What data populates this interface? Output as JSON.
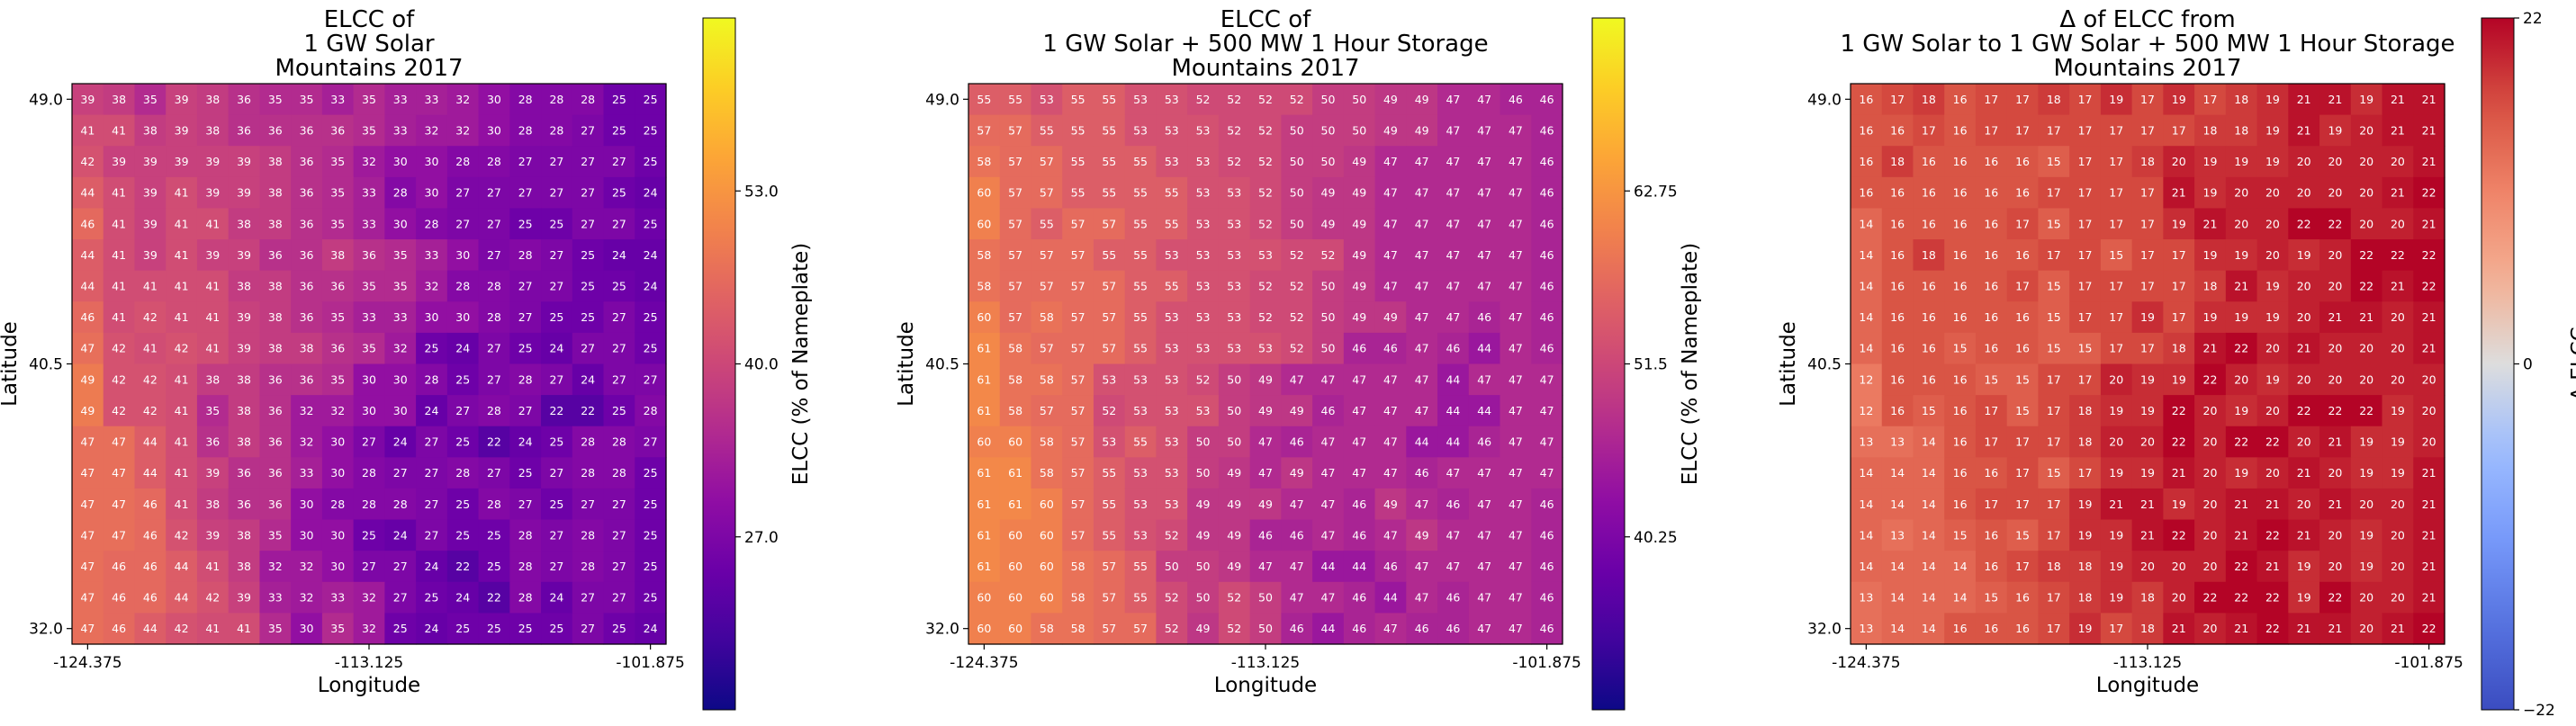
{
  "chart_data": [
    {
      "type": "heatmap",
      "title": [
        "ELCC of",
        "1 GW Solar",
        "Mountains 2017"
      ],
      "xlabel": "Longitude",
      "ylabel": "Latitude",
      "xticks": [
        "-124.375",
        "-113.125",
        "-101.875"
      ],
      "yticks": [
        "49.0",
        "40.5",
        "32.0"
      ],
      "colorbar_label": "ELCC (% of Nameplate)",
      "colorbar_ticks": [
        "27.0",
        "40.0",
        "53.0"
      ],
      "colorbar_tick_values": [
        27.0,
        40.0,
        53.0
      ],
      "colormap": "plasma",
      "vmin": 14,
      "vmax": 66,
      "rows": [
        "39 38 35 39 38 36 35 35 33 35 33 33 32 30 28 28 28 25 25",
        "41 41 38 39 38 36 36 36 36 35 33 32 32 30 28 28 27 25 25",
        "42 39 39 39 39 39 38 36 35 32 30 30 28 28 27 27 27 27 25",
        "44 41 39 41 39 39 38 36 35 33 28 30 27 27 27 27 27 25 24",
        "46 41 39 41 41 38 38 36 35 33 30 28 27 27 25 25 27 27 25",
        "44 41 39 41 39 39 36 36 38 36 35 33 30 27 28 27 25 24 24",
        "44 41 41 41 41 38 38 36 36 35 35 32 28 28 27 27 25 25 24",
        "46 41 42 41 41 39 38 36 35 33 33 30 30 28 27 25 25 27 25",
        "47 42 41 42 41 39 38 38 36 35 32 25 24 27 25 24 27 27 25",
        "49 42 42 41 38 38 36 36 35 30 30 28 25 27 28 27 24 27 27",
        "49 42 42 41 35 38 36 32 32 30 30 24 27 28 27 22 22 25 28",
        "47 47 44 41 36 38 36 32 30 27 24 27 25 22 24 25 28 28 27",
        "47 47 44 41 39 36 36 33 30 28 27 27 28 27 25 27 28 28 25",
        "47 47 46 41 38 36 36 30 28 28 28 27 25 28 27 25 27 27 25",
        "47 47 46 42 39 38 35 30 30 25 24 27 25 25 28 27 28 27 25",
        "47 46 46 44 41 38 32 32 30 27 27 24 22 25 28 27 28 27 25",
        "47 46 46 44 42 39 33 32 33 32 27 25 24 22 28 24 27 27 25",
        "47 46 44 42 41 41 35 30 35 32 25 24 25 25 25 25 27 25 24"
      ]
    },
    {
      "type": "heatmap",
      "title": [
        "ELCC of",
        "1 GW Solar + 500 MW 1 Hour Storage",
        "Mountains 2017"
      ],
      "xlabel": "Longitude",
      "ylabel": "Latitude",
      "xticks": [
        "-124.375",
        "-113.125",
        "-101.875"
      ],
      "yticks": [
        "49.0",
        "40.5",
        "32.0"
      ],
      "colorbar_label": "ELCC (% of Nameplate)",
      "colorbar_ticks": [
        "40.25",
        "51.5",
        "62.75"
      ],
      "colorbar_tick_values": [
        40.25,
        51.5,
        62.75
      ],
      "colormap": "plasma",
      "vmin": 29,
      "vmax": 74,
      "rows": [
        "55 55 53 55 55 53 53 52 52 52 52 50 50 49 49 47 47 46 46",
        "57 57 55 55 55 53 53 53 52 52 50 50 50 49 49 47 47 47 46",
        "58 57 57 55 55 55 53 53 52 52 50 50 49 47 47 47 47 47 46",
        "60 57 57 55 55 55 55 53 53 52 50 49 49 47 47 47 47 47 46",
        "60 57 55 57 57 55 55 53 53 52 50 49 49 47 47 47 47 47 46",
        "58 57 57 57 55 55 53 53 53 53 52 52 49 47 47 47 47 47 46",
        "58 57 57 57 57 55 55 53 53 52 52 50 49 47 47 47 47 47 46",
        "60 57 58 57 57 55 53 53 53 52 52 50 49 49 47 47 46 47 46",
        "61 58 57 57 57 55 53 53 53 53 52 50 46 46 47 46 44 47 46",
        "61 58 58 57 53 53 53 52 50 49 47 47 47 47 47 44 47 47 47",
        "61 58 57 57 52 53 53 53 50 49 49 46 47 47 47 44 44 47 47",
        "60 60 58 57 53 55 53 50 50 47 46 47 47 47 44 44 46 47 47",
        "61 61 58 57 55 53 53 50 49 47 49 47 47 47 46 47 47 47 47",
        "61 61 60 57 55 53 53 49 49 49 47 47 46 49 47 46 47 47 46",
        "61 60 60 57 55 53 52 49 49 46 46 47 46 47 49 47 47 47 46",
        "61 60 60 58 57 55 50 50 49 47 47 44 44 46 47 47 47 47 46",
        "60 60 60 58 57 55 52 50 52 50 47 47 46 44 47 46 47 47 46",
        "60 60 58 58 57 57 52 49 52 50 46 44 46 47 46 46 47 47 46"
      ]
    },
    {
      "type": "heatmap",
      "title": [
        "Δ of ELCC from",
        "1 GW Solar to 1 GW Solar + 500 MW 1 Hour Storage",
        "Mountains 2017"
      ],
      "xlabel": "Longitude",
      "ylabel": "Latitude",
      "xticks": [
        "-124.375",
        "-113.125",
        "-101.875"
      ],
      "yticks": [
        "49.0",
        "40.5",
        "32.0"
      ],
      "colorbar_label": "Δ ELCC",
      "colorbar_ticks": [
        "−22",
        "0",
        "22"
      ],
      "colorbar_tick_values": [
        -22,
        0,
        22
      ],
      "colormap": "coolwarm",
      "vmin": -22,
      "vmax": 22,
      "rows": [
        "16 17 18 16 17 17 18 17 19 17 19 17 18 19 21 21 19 21 21",
        "16 16 17 16 17 17 17 17 17 17 17 18 18 19 21 19 20 21 21",
        "16 18 16 16 16 16 15 17 17 18 20 19 19 19 20 20 20 20 21",
        "16 16 16 16 16 16 17 17 17 17 21 19 20 20 20 20 20 21 22",
        "14 16 16 16 16 17 15 17 17 17 19 21 20 20 22 22 20 20 21",
        "14 16 18 16 16 16 17 17 15 17 17 19 19 20 19 20 22 22 22",
        "14 16 16 16 16 17 15 17 17 17 17 18 21 19 20 20 22 21 22",
        "14 16 16 16 16 16 15 17 17 19 17 19 19 19 20 21 21 20 21",
        "14 16 16 15 16 16 15 15 17 17 18 21 22 20 21 20 20 20 21",
        "12 16 16 16 15 15 17 17 20 19 19 22 20 19 20 20 20 20 20",
        "12 16 15 16 17 15 17 18 19 19 22 20 19 20 22 22 22 19 20",
        "13 13 14 16 17 17 17 18 20 20 22 20 22 22 20 21 19 19 20",
        "14 14 14 16 16 17 15 17 19 19 21 20 19 20 21 20 19 19 21",
        "14 14 14 16 17 17 17 19 21 21 19 20 21 21 20 21 20 20 21",
        "14 13 14 15 16 15 17 19 19 21 22 20 21 22 21 20 19 20 21",
        "14 14 14 14 16 17 18 18 19 20 20 20 22 21 19 20 19 20 21",
        "13 14 14 14 15 16 17 18 19 18 20 22 22 22 19 22 20 20 21",
        "13 14 14 16 16 16 17 19 17 18 21 20 21 22 21 21 20 21 22"
      ]
    }
  ]
}
